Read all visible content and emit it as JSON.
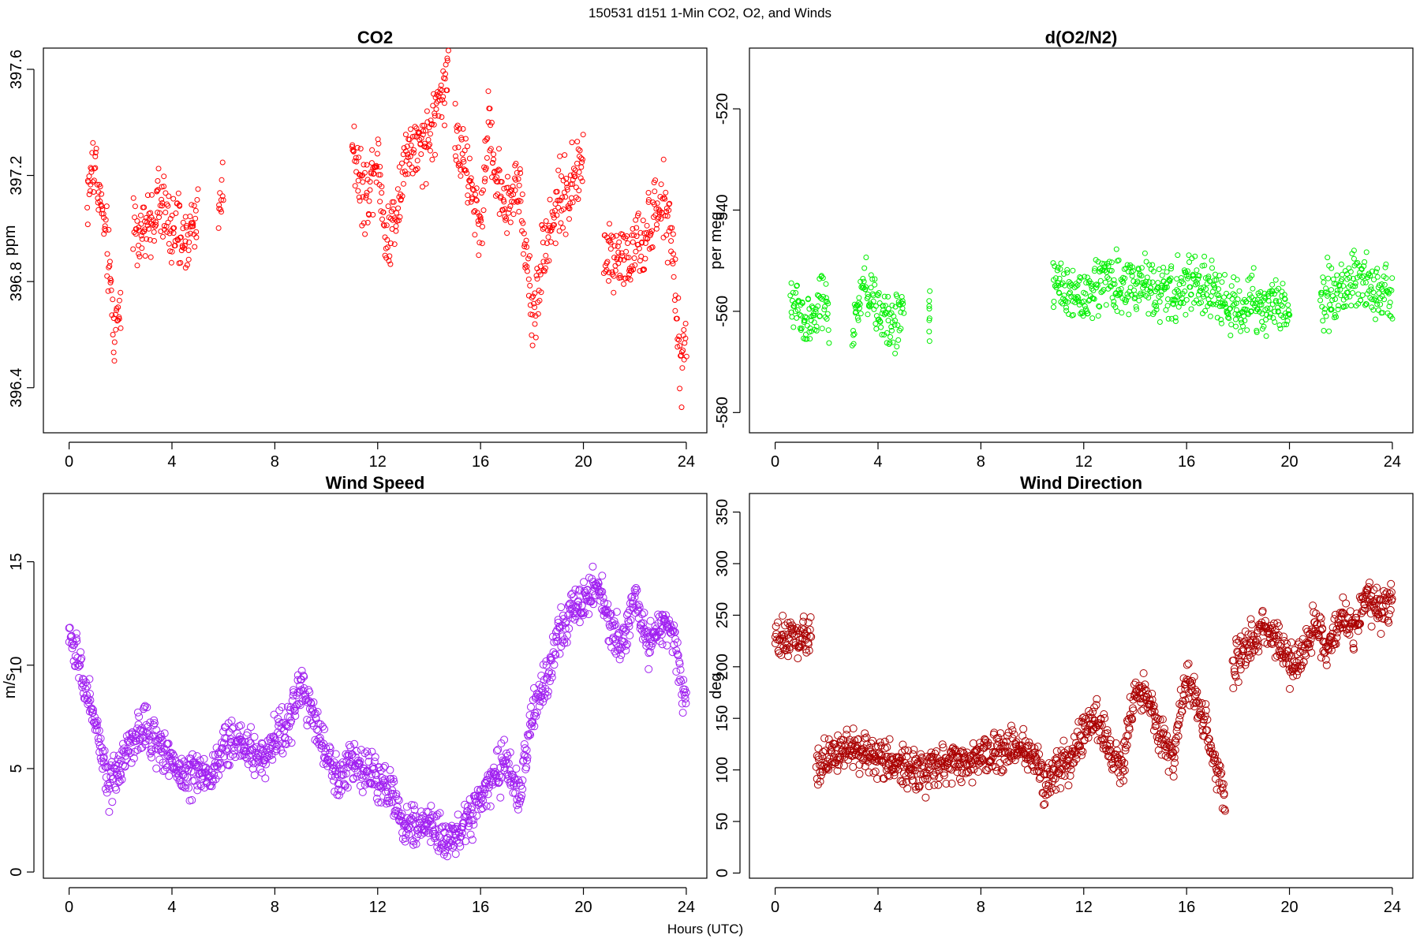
{
  "figure": {
    "title": "150531   d151   1-Min CO2, O2, and Winds",
    "xlabel": "Hours (UTC)"
  },
  "chart_data": [
    {
      "id": "co2",
      "type": "scatter",
      "title": "CO2",
      "xlabel": "",
      "ylabel": "ppm",
      "xlim": [
        -1,
        24.8
      ],
      "ylim": [
        396.23,
        397.68
      ],
      "xticks": [
        0,
        4,
        8,
        12,
        16,
        20,
        24
      ],
      "yticks": [
        396.4,
        396.8,
        397.2,
        397.6
      ],
      "ytick_labels": [
        "396.4",
        "396.8",
        "397.2",
        "397.6"
      ],
      "color": "#ff0000",
      "marker_size": 3,
      "grid": false,
      "segments": [
        {
          "x": [
            0.7,
            0.85,
            1.0,
            1.15,
            1.3,
            1.45,
            1.6,
            1.75,
            1.85,
            2.0
          ],
          "y": [
            397.1,
            397.2,
            397.25,
            397.15,
            397.05,
            396.95,
            396.8,
            396.6,
            396.65,
            396.75
          ]
        },
        {
          "x": [
            2.5,
            3.0,
            3.5,
            4.0,
            4.5,
            5.0
          ],
          "y": [
            397.0,
            396.98,
            397.1,
            397.0,
            396.95,
            397.05
          ]
        },
        {
          "x": [
            5.8,
            6.0
          ],
          "y": [
            397.1,
            397.15
          ]
        },
        {
          "x": [
            11.0,
            11.5,
            12.0,
            12.3,
            12.7,
            13.0,
            13.3,
            13.7,
            14.0,
            14.3,
            14.6,
            14.75
          ],
          "y": [
            397.35,
            397.1,
            397.3,
            396.95,
            397.05,
            397.25,
            397.3,
            397.28,
            397.35,
            397.45,
            397.55,
            397.65
          ]
        },
        {
          "x": [
            15.0,
            15.5,
            16.0,
            16.3,
            16.6,
            17.0,
            17.5,
            17.8,
            18.0,
            18.5,
            19.0,
            19.5,
            20.0
          ],
          "y": [
            397.35,
            397.2,
            397.0,
            397.4,
            397.2,
            397.1,
            397.15,
            396.9,
            396.65,
            396.95,
            397.1,
            397.15,
            397.25
          ]
        },
        {
          "x": [
            20.8,
            21.2,
            21.6,
            22.0,
            22.4,
            22.8,
            23.2,
            23.5,
            23.8,
            24.0
          ],
          "y": [
            396.9,
            396.92,
            396.88,
            396.9,
            396.95,
            397.05,
            397.1,
            396.85,
            396.45,
            396.6
          ]
        }
      ]
    },
    {
      "id": "o2",
      "type": "scatter",
      "title": "d(O2/N2)",
      "xlabel": "",
      "ylabel": "per meg",
      "xlim": [
        -1,
        24.8
      ],
      "ylim": [
        -584,
        -508
      ],
      "xticks": [
        0,
        4,
        8,
        12,
        16,
        20,
        24
      ],
      "yticks": [
        -580,
        -560,
        -540,
        -520
      ],
      "ytick_labels": [
        "-580",
        "-560",
        "-540",
        "-520"
      ],
      "color": "#00ee00",
      "marker_size": 3,
      "grid": false,
      "segments": [
        {
          "x": [
            0.6,
            0.9,
            1.2,
            1.5,
            1.8,
            2.1
          ],
          "y": [
            -560,
            -558,
            -563,
            -562,
            -558,
            -560
          ]
        },
        {
          "x": [
            3.0,
            3.5,
            4.0,
            4.5,
            5.0
          ],
          "y": [
            -565,
            -555,
            -560,
            -563,
            -560
          ]
        },
        {
          "x": [
            6.0
          ],
          "y": [
            -560
          ]
        },
        {
          "x": [
            10.8,
            11.5,
            12.0,
            12.5,
            13.0,
            13.5,
            14.0,
            14.5,
            15.0,
            15.5,
            16.0,
            16.5,
            17.0,
            17.5,
            18.0,
            18.5,
            19.0,
            19.5,
            20.0
          ],
          "y": [
            -555,
            -556,
            -557,
            -555,
            -554,
            -556,
            -555,
            -554,
            -556,
            -557,
            -555,
            -554,
            -556,
            -558,
            -560,
            -558,
            -559,
            -560,
            -558
          ]
        },
        {
          "x": [
            21.2,
            21.6,
            22.0,
            22.4,
            22.8,
            23.2,
            23.6,
            24.0
          ],
          "y": [
            -558,
            -556,
            -557,
            -554,
            -553,
            -555,
            -556,
            -558
          ]
        }
      ]
    },
    {
      "id": "wind-speed",
      "type": "scatter",
      "title": "Wind Speed",
      "xlabel": "",
      "ylabel": "m/s",
      "xlim": [
        -1,
        24.8
      ],
      "ylim": [
        -0.3,
        18.3
      ],
      "xticks": [
        0,
        4,
        8,
        12,
        16,
        20,
        24
      ],
      "yticks": [
        0,
        5,
        10,
        15
      ],
      "ytick_labels": [
        "0",
        "5",
        "10",
        "15"
      ],
      "color": "#a020f0",
      "marker_size": 4.5,
      "grid": false,
      "segments": [
        {
          "x": [
            0.0,
            0.5,
            1.0,
            1.5,
            2.0,
            2.5,
            3.0,
            3.5,
            4.0,
            4.5,
            5.0,
            5.5,
            6.0,
            6.5,
            7.0,
            7.5,
            8.0,
            8.5,
            9.0,
            9.5,
            10.0,
            10.5,
            11.0,
            11.5,
            12.0,
            12.5,
            13.0,
            13.5,
            14.0,
            14.5,
            15.0,
            15.5,
            16.0,
            16.5,
            17.0,
            17.5,
            18.0,
            18.5,
            19.0,
            19.5,
            20.0,
            20.5,
            21.0,
            21.5,
            22.0,
            22.5,
            23.0,
            23.5,
            24.0
          ],
          "y": [
            11.5,
            9.5,
            7.5,
            4.0,
            5.0,
            6.5,
            7.0,
            6.0,
            5.5,
            4.5,
            5.0,
            4.5,
            6.0,
            6.5,
            6.0,
            5.5,
            6.5,
            7.0,
            9.0,
            7.5,
            5.5,
            4.5,
            5.5,
            5.0,
            4.5,
            4.0,
            2.5,
            2.0,
            2.5,
            1.5,
            1.5,
            2.5,
            3.5,
            4.5,
            5.5,
            3.5,
            7.5,
            9.0,
            11.5,
            12.5,
            13.0,
            14.0,
            12.0,
            11.0,
            13.0,
            11.0,
            12.0,
            11.5,
            8.0
          ]
        }
      ]
    },
    {
      "id": "wind-direction",
      "type": "scatter",
      "title": "Wind Direction",
      "xlabel": "",
      "ylabel": "deg",
      "xlim": [
        -1,
        24.8
      ],
      "ylim": [
        -5,
        368
      ],
      "xticks": [
        0,
        4,
        8,
        12,
        16,
        20,
        24
      ],
      "yticks": [
        0,
        50,
        100,
        150,
        200,
        250,
        300,
        350
      ],
      "ytick_labels": [
        "0",
        "50",
        "100",
        "150",
        "200",
        "250",
        "300",
        "350"
      ],
      "color": "#aa0000",
      "marker_size": 4.5,
      "grid": false,
      "segments": [
        {
          "x": [
            0.0,
            0.5,
            1.0,
            1.4
          ],
          "y": [
            222,
            228,
            225,
            235
          ]
        },
        {
          "x": [
            1.6,
            2.0,
            2.5,
            3.0,
            3.5,
            4.0,
            4.5,
            5.0,
            5.5,
            6.0,
            6.5,
            7.0,
            7.5,
            8.0,
            8.5,
            9.0,
            9.5,
            10.0,
            10.5,
            11.0,
            11.5,
            12.0,
            12.5,
            13.0,
            13.5,
            14.0,
            14.5,
            15.0,
            15.5,
            16.0,
            16.5,
            17.0,
            17.5
          ],
          "y": [
            100,
            110,
            118,
            122,
            115,
            110,
            108,
            105,
            100,
            98,
            108,
            110,
            105,
            112,
            115,
            118,
            120,
            115,
            90,
            100,
            105,
            140,
            150,
            120,
            100,
            180,
            170,
            130,
            110,
            190,
            160,
            120,
            70
          ]
        },
        {
          "x": [
            17.8,
            18.0,
            18.5,
            19.0,
            19.5,
            20.0,
            20.5,
            21.0,
            21.5,
            22.0,
            22.5,
            23.0,
            23.5,
            24.0
          ],
          "y": [
            195,
            210,
            225,
            235,
            230,
            200,
            215,
            240,
            215,
            245,
            235,
            270,
            255,
            260
          ]
        }
      ]
    }
  ]
}
